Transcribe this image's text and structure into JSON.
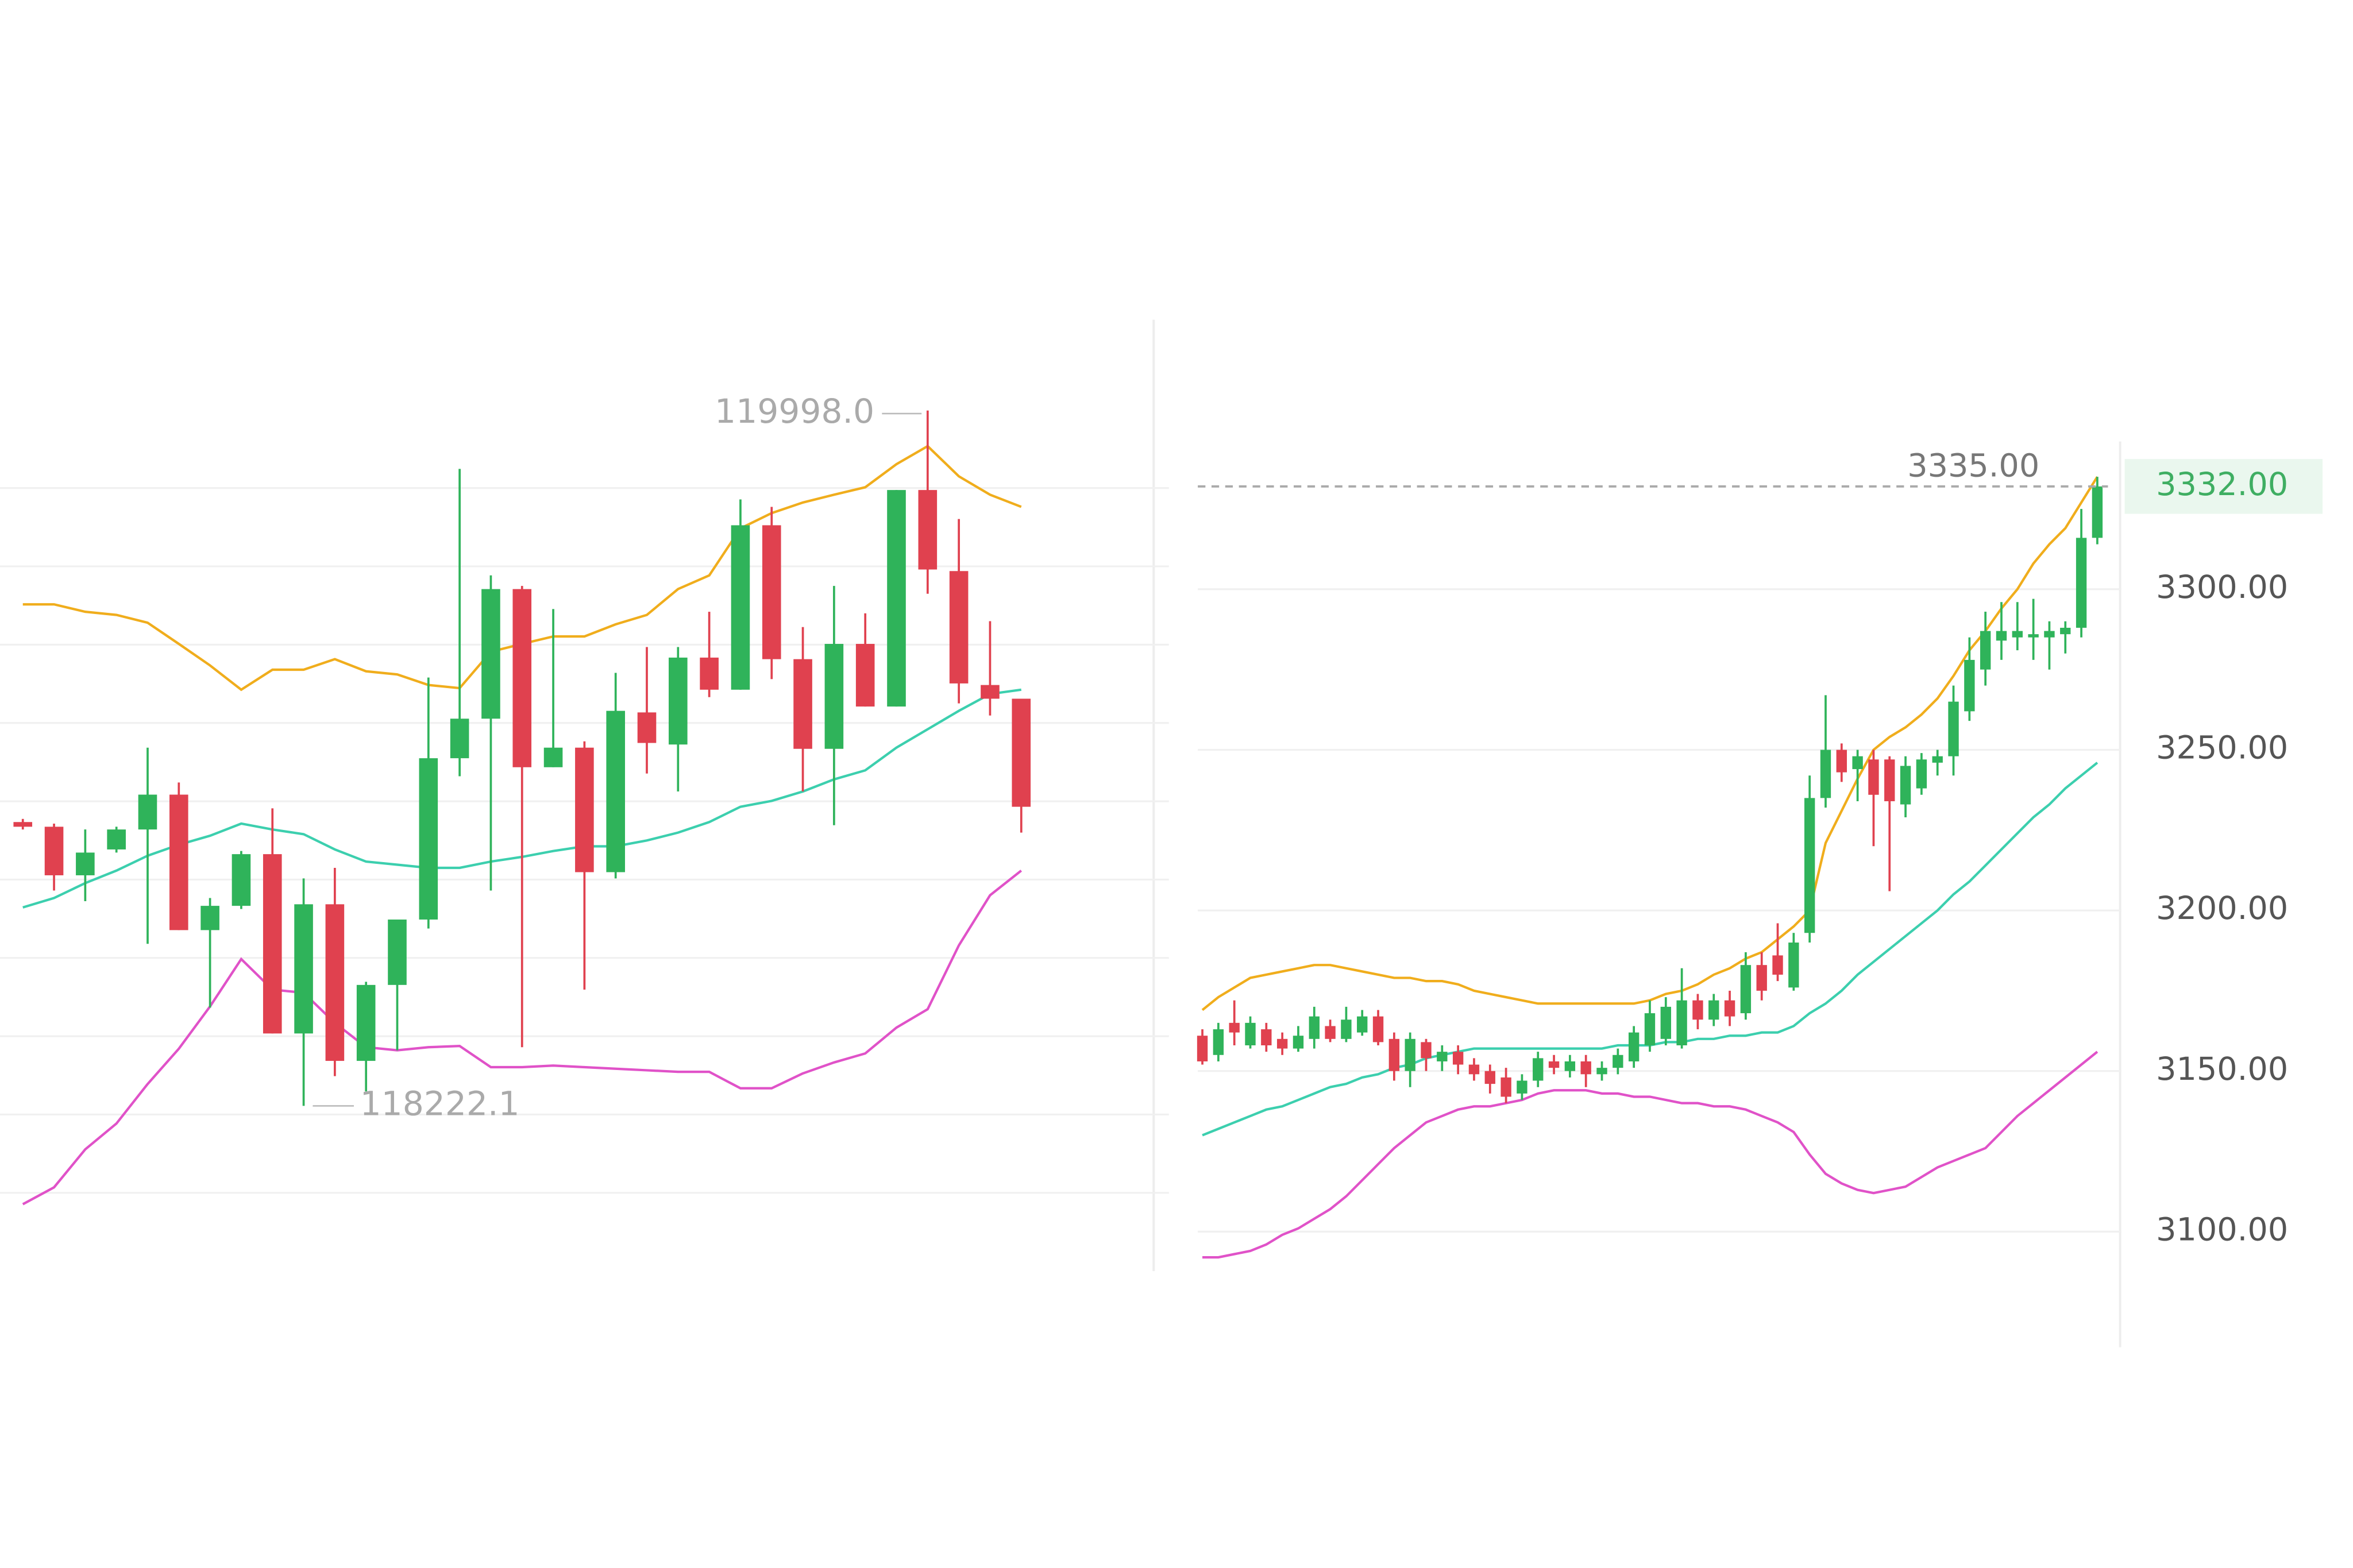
{
  "chart_data": [
    {
      "type": "candlestick",
      "ylim": [
        117800,
        120230
      ],
      "yticks": [
        118000,
        118200,
        118400,
        118600,
        118800,
        119000,
        119200,
        119400,
        119600,
        119800
      ],
      "grid": true,
      "tick_labels": false,
      "up_color": "#2fb35a",
      "down_color": "#e0414f",
      "open": [
        118947,
        118935,
        118811,
        118877,
        118928,
        119017,
        118671,
        118733,
        118865,
        118407,
        118737,
        118337,
        118531,
        118698,
        119110,
        119211,
        119542,
        119087,
        119137,
        118819,
        119227,
        119145,
        119367,
        119285,
        119705,
        119363,
        119134,
        119402,
        119242,
        119795,
        119588,
        119297,
        119262
      ],
      "high": [
        118955,
        118943,
        118928,
        118935,
        119137,
        119048,
        118753,
        118873,
        118982,
        118803,
        118830,
        118539,
        118698,
        119316,
        119849,
        119577,
        119550,
        119491,
        119153,
        119328,
        119394,
        119394,
        119484,
        119771,
        119752,
        119445,
        119550,
        119480,
        119795,
        119998,
        119721,
        119460,
        119262
      ],
      "low": [
        118928,
        118772,
        118745,
        118869,
        118636,
        118671,
        118473,
        118725,
        118407,
        118222.1,
        118298,
        118259,
        118364,
        118675,
        119064,
        118772,
        118372,
        119087,
        118519,
        118803,
        119071,
        119025,
        119266,
        119285,
        119312,
        119025,
        118939,
        119242,
        119242,
        119530,
        119250,
        119219,
        118920
      ],
      "close": [
        118935,
        118811,
        118869,
        118928,
        119017,
        118671,
        118733,
        118865,
        118407,
        118737,
        118337,
        118531,
        118698,
        119110,
        119211,
        119542,
        119087,
        119137,
        118819,
        119231,
        119149,
        119367,
        119285,
        119705,
        119363,
        119134,
        119402,
        119242,
        119795,
        119592,
        119301,
        119262,
        118986
      ],
      "lines": [
        {
          "color": "#f0ad1c",
          "values": [
            119503,
            119503,
            119484,
            119476,
            119456,
            119402,
            119347,
            119285,
            119336,
            119336,
            119363,
            119332,
            119324,
            119297,
            119289,
            119382,
            119402,
            119421,
            119421,
            119452,
            119476,
            119542,
            119577,
            119697,
            119736,
            119763,
            119783,
            119802,
            119861,
            119907,
            119830,
            119783,
            119752
          ]
        },
        {
          "color": "#3ccfae",
          "values": [
            118729,
            118753,
            118791,
            118823,
            118861,
            118889,
            118912,
            118943,
            118928,
            118916,
            118877,
            118846,
            118838,
            118830,
            118830,
            118846,
            118858,
            118873,
            118885,
            118885,
            118900,
            118920,
            118947,
            118986,
            119001,
            119025,
            119056,
            119079,
            119137,
            119184,
            119231,
            119274,
            119285
          ]
        },
        {
          "color": "#e052c8",
          "values": [
            117971,
            118014,
            118111,
            118177,
            118278,
            118368,
            118476,
            118597,
            118519,
            118511,
            118434,
            118372,
            118364,
            118372,
            118375,
            118321,
            118321,
            118325,
            118321,
            118317,
            118313,
            118309,
            118309,
            118267,
            118267,
            118305,
            118333,
            118356,
            118422,
            118469,
            118632,
            118760,
            118823
          ]
        }
      ],
      "high_label": "119998.0",
      "low_label": "118222.1"
    },
    {
      "type": "candlestick",
      "ylim": [
        3064,
        3346
      ],
      "yticks": [
        {
          "value": 3100,
          "label": "3100.00"
        },
        {
          "value": 3150,
          "label": "3150.00"
        },
        {
          "value": 3200,
          "label": "3200.00"
        },
        {
          "value": 3250,
          "label": "3250.00"
        },
        {
          "value": 3300,
          "label": "3300.00"
        }
      ],
      "grid": true,
      "tick_labels": true,
      "up_color": "#2fb35a",
      "down_color": "#e0414f",
      "open": [
        3161,
        3155,
        3165,
        3158,
        3163,
        3160,
        3157,
        3160,
        3164,
        3160,
        3162,
        3167,
        3160,
        3150,
        3159,
        3153,
        3156,
        3152,
        3150,
        3148,
        3143,
        3147,
        3153,
        3150,
        3153,
        3149,
        3151,
        3153,
        3158,
        3160,
        3158,
        3172,
        3166,
        3172,
        3168,
        3183,
        3186,
        3176,
        3193,
        3235,
        3250,
        3244,
        3247,
        3247,
        3233,
        3238,
        3246,
        3248,
        3262,
        3275,
        3284,
        3285,
        3285,
        3285,
        3286,
        3288,
        3316
      ],
      "high": [
        3163,
        3165,
        3172,
        3167,
        3165,
        3162,
        3164,
        3170,
        3166,
        3170,
        3169,
        3169,
        3162,
        3162,
        3160,
        3158,
        3158,
        3154,
        3152,
        3151,
        3149,
        3156,
        3155,
        3155,
        3155,
        3153,
        3157,
        3164,
        3172,
        3173,
        3182,
        3174,
        3174,
        3175,
        3187,
        3187,
        3196,
        3193,
        3242,
        3267,
        3252,
        3250,
        3250,
        3248,
        3248,
        3249,
        3250,
        3270,
        3285,
        3293,
        3296,
        3296,
        3297,
        3290,
        3290,
        3325,
        3335
      ],
      "low": [
        3152,
        3153,
        3158,
        3157,
        3156,
        3155,
        3156,
        3157,
        3159,
        3159,
        3161,
        3158,
        3147,
        3145,
        3150,
        3150,
        3149,
        3147,
        3143,
        3140,
        3141,
        3145,
        3149,
        3148,
        3145,
        3147,
        3149,
        3151,
        3156,
        3158,
        3157,
        3163,
        3164,
        3164,
        3166,
        3172,
        3178,
        3175,
        3190,
        3232,
        3240,
        3234,
        3220,
        3206,
        3229,
        3236,
        3242,
        3242,
        3259,
        3270,
        3278,
        3281,
        3278,
        3275,
        3280,
        3285,
        3314
      ],
      "close": [
        3153,
        3163,
        3162,
        3165,
        3158,
        3157,
        3161,
        3167,
        3160,
        3166,
        3167,
        3159,
        3150,
        3160,
        3154,
        3156,
        3152,
        3149,
        3146,
        3142,
        3147,
        3154,
        3151,
        3153,
        3149,
        3151,
        3155,
        3162,
        3168,
        3170,
        3172,
        3166,
        3172,
        3167,
        3183,
        3175,
        3180,
        3190,
        3235,
        3250,
        3243,
        3248,
        3236,
        3234,
        3245,
        3247,
        3248,
        3265,
        3278,
        3287,
        3287,
        3287,
        3286,
        3287,
        3288,
        3316,
        3332
      ],
      "lines": [
        {
          "color": "#f0ad1c",
          "values": [
            3169,
            3173,
            3176,
            3179,
            3180,
            3181,
            3182,
            3183,
            3183,
            3182,
            3181,
            3180,
            3179,
            3179,
            3178,
            3178,
            3177,
            3175,
            3174,
            3173,
            3172,
            3171,
            3171,
            3171,
            3171,
            3171,
            3171,
            3171,
            3172,
            3174,
            3175,
            3177,
            3180,
            3182,
            3185,
            3187,
            3191,
            3195,
            3200,
            3221,
            3231,
            3241,
            3250,
            3254,
            3257,
            3261,
            3266,
            3273,
            3281,
            3287,
            3294,
            3300,
            3308,
            3314,
            3319,
            3327,
            3335
          ]
        },
        {
          "color": "#3ccfae",
          "values": [
            3130,
            3132,
            3134,
            3136,
            3138,
            3139,
            3141,
            3143,
            3145,
            3146,
            3148,
            3149,
            3151,
            3152,
            3154,
            3155,
            3156,
            3157,
            3157,
            3157,
            3157,
            3157,
            3157,
            3157,
            3157,
            3157,
            3158,
            3158,
            3158,
            3159,
            3159,
            3160,
            3160,
            3161,
            3161,
            3162,
            3162,
            3164,
            3168,
            3171,
            3175,
            3180,
            3184,
            3188,
            3192,
            3196,
            3200,
            3205,
            3209,
            3214,
            3219,
            3224,
            3229,
            3233,
            3238,
            3242,
            3246
          ]
        },
        {
          "color": "#e052c8",
          "values": [
            3092,
            3092,
            3093,
            3094,
            3096,
            3099,
            3101,
            3104,
            3107,
            3111,
            3116,
            3121,
            3126,
            3130,
            3134,
            3136,
            3138,
            3139,
            3139,
            3140,
            3141,
            3143,
            3144,
            3144,
            3144,
            3143,
            3143,
            3142,
            3142,
            3141,
            3140,
            3140,
            3139,
            3139,
            3138,
            3136,
            3134,
            3131,
            3124,
            3118,
            3115,
            3113,
            3112,
            3113,
            3114,
            3117,
            3120,
            3122,
            3124,
            3126,
            3131,
            3136,
            3140,
            3144,
            3148,
            3152,
            3156
          ]
        }
      ],
      "high_label": "3335.00",
      "last_price": {
        "value": 3332,
        "label": "3332.00"
      }
    }
  ]
}
